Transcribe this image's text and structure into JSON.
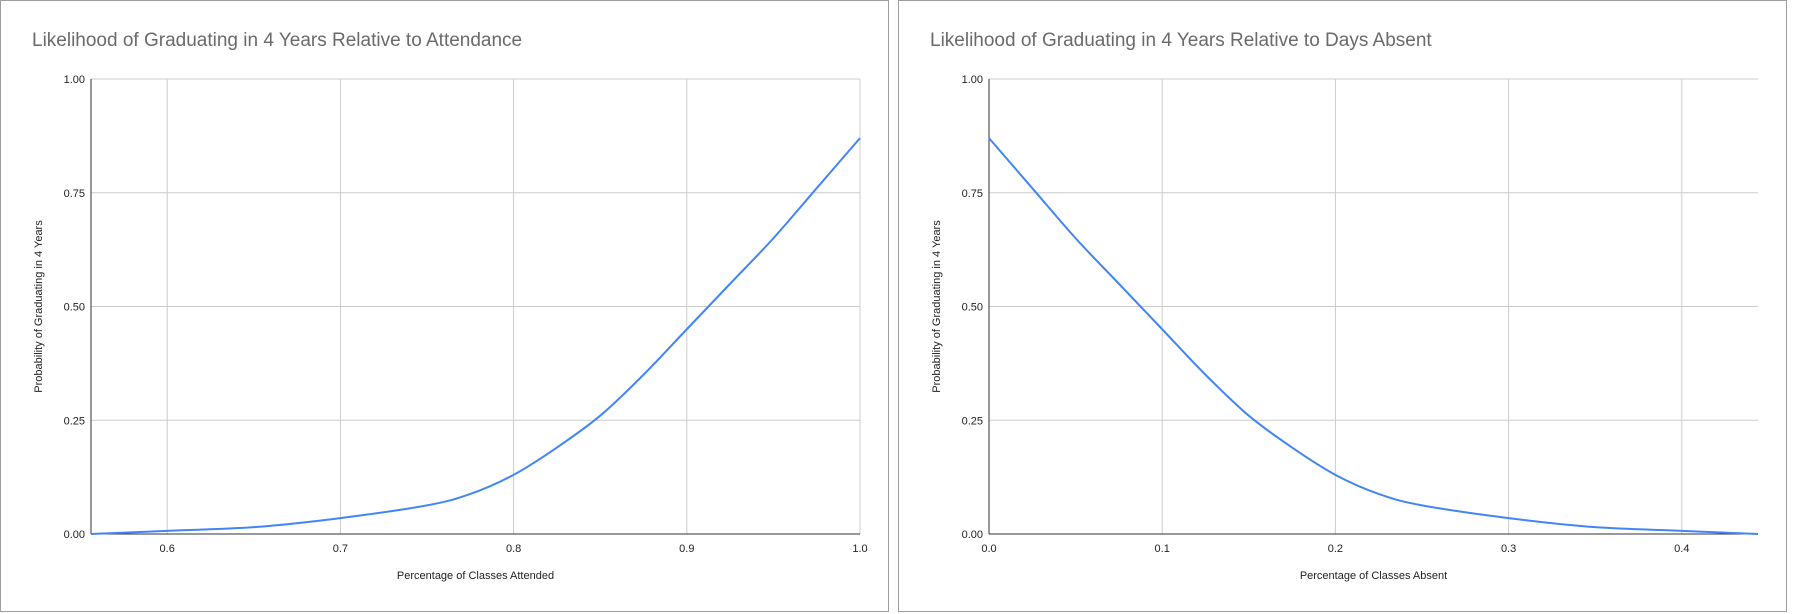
{
  "colors": {
    "series": "#4285f4",
    "grid": "#cccccc",
    "axis": "#333333",
    "title": "#6a6a6a",
    "border": "#9e9e9e"
  },
  "chart_data": [
    {
      "type": "line",
      "title": "Likelihood of Graduating in 4 Years Relative to Attendance",
      "xlabel": "Percentage of Classes Attended",
      "ylabel": "Probability of Graduating in 4 Years",
      "xlim": [
        0.556,
        1.0
      ],
      "ylim": [
        0,
        1
      ],
      "grid": true,
      "legend": "none",
      "x_ticks": [
        "0.6",
        "0.7",
        "0.8",
        "0.9",
        "1.0"
      ],
      "x_tick_values": [
        0.6,
        0.7,
        0.8,
        0.9,
        1.0
      ],
      "y_ticks": [
        "0.00",
        "0.25",
        "0.50",
        "0.75",
        "1.00"
      ],
      "y_tick_values": [
        0,
        0.25,
        0.5,
        0.75,
        1.0
      ],
      "series": [
        {
          "x": [
            0.556,
            0.6,
            0.65,
            0.7,
            0.75,
            0.775,
            0.8,
            0.825,
            0.85,
            0.875,
            0.9,
            0.925,
            0.95,
            0.975,
            1.0
          ],
          "y": [
            0.0,
            0.007,
            0.015,
            0.035,
            0.063,
            0.088,
            0.13,
            0.19,
            0.26,
            0.35,
            0.45,
            0.55,
            0.65,
            0.76,
            0.87
          ]
        }
      ]
    },
    {
      "type": "line",
      "title": "Likelihood of Graduating in 4 Years Relative to Days Absent",
      "xlabel": "Percentage of Classes Absent",
      "ylabel": "Probability of Graduating in 4 Years",
      "xlim": [
        0,
        0.444
      ],
      "ylim": [
        0,
        1
      ],
      "grid": true,
      "legend": "none",
      "x_ticks": [
        "0.0",
        "0.1",
        "0.2",
        "0.3",
        "0.4"
      ],
      "x_tick_values": [
        0,
        0.1,
        0.2,
        0.3,
        0.4
      ],
      "y_ticks": [
        "0.00",
        "0.25",
        "0.50",
        "0.75",
        "1.00"
      ],
      "y_tick_values": [
        0,
        0.25,
        0.5,
        0.75,
        1.0
      ],
      "series": [
        {
          "x": [
            0.0,
            0.025,
            0.05,
            0.075,
            0.1,
            0.125,
            0.15,
            0.175,
            0.2,
            0.225,
            0.25,
            0.3,
            0.35,
            0.4,
            0.444
          ],
          "y": [
            0.87,
            0.76,
            0.65,
            0.55,
            0.45,
            0.35,
            0.26,
            0.19,
            0.13,
            0.088,
            0.063,
            0.035,
            0.015,
            0.007,
            0.0
          ]
        }
      ]
    }
  ]
}
